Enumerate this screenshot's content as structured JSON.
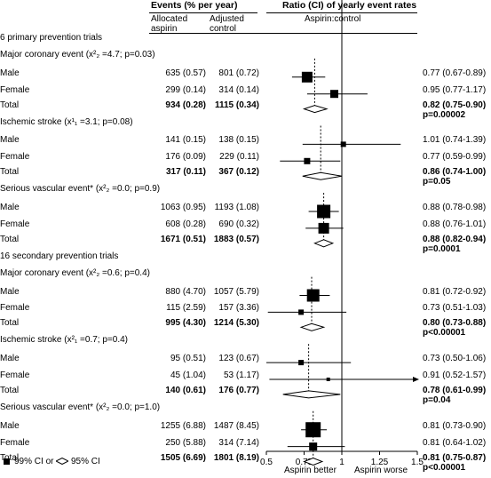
{
  "header": {
    "events": "Events (% per year)",
    "allocated": [
      "Allocated",
      "aspirin"
    ],
    "adjusted": [
      "Adjusted",
      "control"
    ],
    "ratio": "Ratio (CI) of yearly event rates",
    "aspirin_control": "Aspirin:control"
  },
  "legend": {
    "ci99": "99% CI or",
    "ci95": "95% CI"
  },
  "axis_labels": {
    "left": "Aspirin better",
    "right": "Aspirin worse"
  },
  "chart_data": {
    "type": "forest",
    "xlim": [
      0.5,
      1.5
    ],
    "xticks": [
      "0.5",
      "0.75",
      "1",
      "1.25",
      "1.5"
    ],
    "null_line": 1,
    "rows": [
      {
        "kind": "section",
        "label": "6 primary prevention trials"
      },
      {
        "kind": "subgroup",
        "label": "Major coronary event (x²₂ =4.7; p=0.03)",
        "ref": 0.82
      },
      {
        "kind": "study",
        "label": "Male",
        "a": "635 (0.57)",
        "c": "801 (0.72)",
        "ci": "0.77 (0.67-0.89)",
        "est": 0.77,
        "lo": 0.67,
        "hi": 0.89,
        "size": 12
      },
      {
        "kind": "study",
        "label": "Female",
        "a": "299 (0.14)",
        "c": "314 (0.14)",
        "ci": "0.95 (0.77-1.17)",
        "est": 0.95,
        "lo": 0.77,
        "hi": 1.17,
        "size": 9
      },
      {
        "kind": "total",
        "label": "Total",
        "a": "934 (0.28)",
        "c": "1115 (0.34)",
        "ci": "0.82 (0.75-0.90)",
        "p": "p=0.00002",
        "est": 0.82,
        "lo": 0.75,
        "hi": 0.9
      },
      {
        "kind": "subgroup",
        "label": "Ischemic stroke (x¹₁ =3.1; p=0.08)",
        "ref": 0.86
      },
      {
        "kind": "study",
        "label": "Male",
        "a": "141 (0.15)",
        "c": "138 (0.15)",
        "ci": "1.01 (0.74-1.39)",
        "est": 1.01,
        "lo": 0.74,
        "hi": 1.39,
        "size": 6
      },
      {
        "kind": "study",
        "label": "Female",
        "a": "176 (0.09)",
        "c": "229 (0.11)",
        "ci": "0.77 (0.59-0.99)",
        "est": 0.77,
        "lo": 0.59,
        "hi": 0.99,
        "size": 7
      },
      {
        "kind": "total",
        "label": "Total",
        "a": "317 (0.11)",
        "c": "367 (0.12)",
        "ci": "0.86 (0.74-1.00)",
        "p": "p=0.05",
        "est": 0.86,
        "lo": 0.74,
        "hi": 1.0
      },
      {
        "kind": "subgroup",
        "label": "Serious vascular event* (x²₂ =0.0; p=0.9)",
        "ref": 0.88
      },
      {
        "kind": "study",
        "label": "Male",
        "a": "1063 (0.95)",
        "c": "1193 (1.08)",
        "ci": "0.88 (0.78-0.98)",
        "est": 0.88,
        "lo": 0.78,
        "hi": 0.98,
        "size": 15
      },
      {
        "kind": "study",
        "label": "Female",
        "a": "608 (0.28)",
        "c": "690 (0.32)",
        "ci": "0.88 (0.76-1.01)",
        "est": 0.88,
        "lo": 0.76,
        "hi": 1.01,
        "size": 12
      },
      {
        "kind": "total",
        "label": "Total",
        "a": "1671 (0.51)",
        "c": "1883 (0.57)",
        "ci": "0.88 (0.82-0.94)",
        "p": "p=0.0001",
        "est": 0.88,
        "lo": 0.82,
        "hi": 0.94
      },
      {
        "kind": "section",
        "label": "16 secondary prevention trials"
      },
      {
        "kind": "subgroup",
        "label": "Major coronary event (x²₂ =0.6; p=0.4)",
        "ref": 0.8
      },
      {
        "kind": "study",
        "label": "Male",
        "a": "880 (4.70)",
        "c": "1057 (5.79)",
        "ci": "0.81 (0.72-0.92)",
        "est": 0.81,
        "lo": 0.72,
        "hi": 0.92,
        "size": 14
      },
      {
        "kind": "study",
        "label": "Female",
        "a": "115 (2.59)",
        "c": "157 (3.36)",
        "ci": "0.73 (0.51-1.03)",
        "est": 0.73,
        "lo": 0.51,
        "hi": 1.03,
        "size": 6
      },
      {
        "kind": "total",
        "label": "Total",
        "a": "995 (4.30)",
        "c": "1214 (5.30)",
        "ci": "0.80 (0.73-0.88)",
        "p": "p<0.00001",
        "est": 0.8,
        "lo": 0.73,
        "hi": 0.88
      },
      {
        "kind": "subgroup",
        "label": "Ischemic stroke (x²₁ =0.7; p=0.4)",
        "ref": 0.78
      },
      {
        "kind": "study",
        "label": "Male",
        "a": "95 (0.51)",
        "c": "123 (0.67)",
        "ci": "0.73 (0.50-1.06)",
        "est": 0.73,
        "lo": 0.5,
        "hi": 1.06,
        "size": 6
      },
      {
        "kind": "study",
        "label": "Female",
        "a": "45 (1.04)",
        "c": "53 (1.17)",
        "ci": "0.91 (0.52-1.57)",
        "est": 0.91,
        "lo": 0.52,
        "hi": 1.57,
        "size": 4
      },
      {
        "kind": "total",
        "label": "Total",
        "a": "140 (0.61)",
        "c": "176 (0.77)",
        "ci": "0.78 (0.61-0.99)",
        "p": "p=0.04",
        "est": 0.78,
        "lo": 0.61,
        "hi": 0.99
      },
      {
        "kind": "subgroup",
        "label": "Serious vascular event* (x²₂ =0.0; p=1.0)",
        "ref": 0.81
      },
      {
        "kind": "study",
        "label": "Male",
        "a": "1255 (6.88)",
        "c": "1487 (8.45)",
        "ci": "0.81 (0.73-0.90)",
        "est": 0.81,
        "lo": 0.73,
        "hi": 0.9,
        "size": 17
      },
      {
        "kind": "study",
        "label": "Female",
        "a": "250 (5.88)",
        "c": "314 (7.14)",
        "ci": "0.81 (0.64-1.02)",
        "est": 0.81,
        "lo": 0.64,
        "hi": 1.02,
        "size": 9
      },
      {
        "kind": "total",
        "label": "Total",
        "a": "1505 (6.69)",
        "c": "1801 (8.19)",
        "ci": "0.81 (0.75-0.87)",
        "p": "p<0.00001",
        "est": 0.81,
        "lo": 0.75,
        "hi": 0.87
      }
    ]
  }
}
